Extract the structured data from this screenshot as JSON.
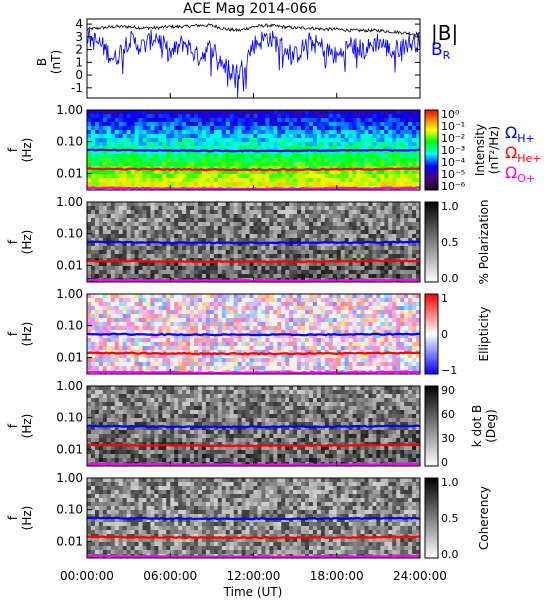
{
  "chart_data": [
    {
      "type": "line",
      "title": "ACE Mag 2014-066",
      "ylabel": "B\n(nT)",
      "yticks": [
        "4",
        "3",
        "2",
        "1",
        "0",
        "-1"
      ],
      "ylim": [
        -1.8,
        4.4
      ],
      "xlim": [
        0,
        24
      ],
      "series": [
        {
          "name": "|B|",
          "color": "#000000",
          "x": [
            0,
            1,
            2,
            3,
            4,
            5,
            6,
            7,
            8,
            9,
            10,
            11,
            12,
            13,
            14,
            15,
            16,
            17,
            18,
            19,
            20,
            21,
            22,
            23,
            24
          ],
          "values": [
            3.6,
            3.7,
            3.8,
            3.8,
            3.7,
            3.7,
            3.8,
            3.8,
            3.9,
            3.9,
            3.6,
            3.5,
            3.8,
            3.9,
            3.8,
            3.7,
            3.7,
            3.6,
            3.6,
            3.5,
            3.5,
            3.5,
            3.4,
            3.3,
            3.2
          ]
        },
        {
          "name": "BR",
          "color": "#0000ff",
          "x": [
            0,
            1,
            2,
            3,
            4,
            5,
            6,
            7,
            8,
            9,
            10,
            11,
            12,
            13,
            14,
            15,
            16,
            17,
            18,
            19,
            20,
            21,
            22,
            23,
            24
          ],
          "values": [
            3.0,
            2.4,
            1.2,
            2.8,
            2.2,
            3.1,
            1.6,
            2.6,
            1.4,
            2.2,
            0.6,
            0.2,
            2.4,
            3.0,
            2.3,
            1.5,
            2.6,
            2.2,
            1.4,
            2.4,
            1.9,
            2.7,
            1.8,
            2.5,
            2.6
          ]
        }
      ],
      "legend": {
        "position": "right",
        "entries": [
          "|B|",
          "B_R"
        ]
      }
    },
    {
      "type": "heatmap",
      "panel": "power",
      "ylabel": "f\n(Hz)",
      "yticks": [
        "1.00",
        "0.10",
        "0.01"
      ],
      "yscale": "log",
      "ylim": [
        0.003,
        1.0
      ],
      "colorbar": {
        "label": "Intensity\n(nT²/Hz)",
        "ticks": [
          "10⁰",
          "10⁻¹",
          "10⁻²",
          "10⁻³",
          "10⁻⁴",
          "10⁻⁵",
          "10⁻⁶"
        ],
        "colormap": "rainbow"
      },
      "gyrofrequency_lines": [
        {
          "name": "ΩH+",
          "color": "#0000ff",
          "freq_hz": 0.055
        },
        {
          "name": "ΩHe+",
          "color": "#ff0000",
          "freq_hz": 0.014
        },
        {
          "name": "ΩO+",
          "color": "#ff00ff",
          "freq_hz": 0.0035
        }
      ]
    },
    {
      "type": "heatmap",
      "panel": "polarization",
      "ylabel": "f\n(Hz)",
      "yticks": [
        "1.00",
        "0.10",
        "0.01"
      ],
      "yscale": "log",
      "colorbar": {
        "label": "% Polarization",
        "ticks": [
          "1.0",
          "0.5",
          "0.0"
        ],
        "range": [
          0,
          1
        ],
        "colormap": "gray"
      }
    },
    {
      "type": "heatmap",
      "panel": "ellipticity",
      "ylabel": "f\n(Hz)",
      "yticks": [
        "1.00",
        "0.10",
        "0.01"
      ],
      "yscale": "log",
      "colorbar": {
        "label": "Ellipticity",
        "ticks": [
          "1",
          "0",
          "−1"
        ],
        "range": [
          -1,
          1
        ],
        "colormap": "blue-white-red"
      }
    },
    {
      "type": "heatmap",
      "panel": "wave-normal-angle",
      "ylabel": "f\n(Hz)",
      "yticks": [
        "1.00",
        "0.10",
        "0.01"
      ],
      "yscale": "log",
      "colorbar": {
        "label": "k dot B\n(Deg)",
        "ticks": [
          "90",
          "60",
          "30",
          "0"
        ],
        "range": [
          0,
          90
        ],
        "colormap": "gray"
      }
    },
    {
      "type": "heatmap",
      "panel": "coherency",
      "ylabel": "f\n(Hz)",
      "yticks": [
        "1.00",
        "0.10",
        "0.01"
      ],
      "yscale": "log",
      "xlabel": "Time (UT)",
      "xticks": [
        "00:00:00",
        "06:00:00",
        "12:00:00",
        "18:00:00",
        "24:00:00"
      ],
      "colorbar": {
        "label": "Coherency",
        "ticks": [
          "1.0",
          "0.5",
          "0.0"
        ],
        "range": [
          0,
          1
        ],
        "colormap": "gray"
      }
    }
  ],
  "labels": {
    "title": "ACE Mag 2014-066",
    "legend_b": "|B|",
    "legend_br": "B",
    "legend_br_sub": "R",
    "omega": "Ω",
    "h_plus": "H+",
    "he_plus": "He+",
    "o_plus": "O+",
    "xlabel": "Time (UT)"
  }
}
